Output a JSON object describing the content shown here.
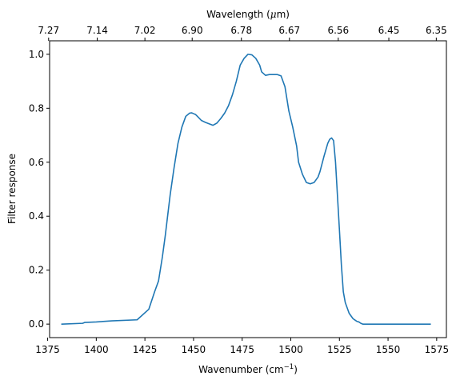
{
  "chart_data": {
    "type": "line",
    "title": "",
    "xlabel": "Wavenumber (cm",
    "xlabel_sup": "−1",
    "xlabel_close": ")",
    "ylabel": "Filter response",
    "top_xlabel_prefix": "Wavelength (",
    "top_xlabel_mu": "μ",
    "top_xlabel_suffix": "m)",
    "xlim": [
      1376,
      1580
    ],
    "ylim": [
      -0.05,
      1.05
    ],
    "grid": false,
    "line_color": "#1f77b4",
    "x_ticks": [
      {
        "value": 1375,
        "label": "1375"
      },
      {
        "value": 1400,
        "label": "1400"
      },
      {
        "value": 1425,
        "label": "1425"
      },
      {
        "value": 1450,
        "label": "1450"
      },
      {
        "value": 1475,
        "label": "1475"
      },
      {
        "value": 1500,
        "label": "1500"
      },
      {
        "value": 1525,
        "label": "1525"
      },
      {
        "value": 1550,
        "label": "1550"
      },
      {
        "value": 1575,
        "label": "1575"
      }
    ],
    "y_ticks": [
      {
        "value": 0.0,
        "label": "0.0"
      },
      {
        "value": 0.2,
        "label": "0.2"
      },
      {
        "value": 0.4,
        "label": "0.4"
      },
      {
        "value": 0.6,
        "label": "0.6"
      },
      {
        "value": 0.8,
        "label": "0.8"
      },
      {
        "value": 1.0,
        "label": "1.0"
      }
    ],
    "top_x_ticks": [
      {
        "value": 1375.5,
        "label": "7.27"
      },
      {
        "value": 1400.5,
        "label": "7.14"
      },
      {
        "value": 1425.0,
        "label": "7.02"
      },
      {
        "value": 1449.3,
        "label": "6.90"
      },
      {
        "value": 1474.6,
        "label": "6.78"
      },
      {
        "value": 1499.3,
        "label": "6.67"
      },
      {
        "value": 1524.4,
        "label": "6.56"
      },
      {
        "value": 1550.4,
        "label": "6.45"
      },
      {
        "value": 1574.8,
        "label": "6.35"
      }
    ],
    "series": [
      {
        "x": [
          1382,
          1393,
          1394,
          1400,
          1408,
          1421,
          1427,
          1430,
          1432,
          1434,
          1435.5,
          1436,
          1437,
          1438,
          1440,
          1442,
          1444,
          1446,
          1448,
          1449,
          1450,
          1451,
          1452,
          1454,
          1456,
          1460,
          1462,
          1464,
          1466,
          1468,
          1470,
          1472,
          1474,
          1476,
          1478,
          1480,
          1482,
          1484,
          1485,
          1487,
          1489,
          1491,
          1493,
          1495,
          1497,
          1499,
          1501,
          1503,
          1504,
          1506,
          1508,
          1510,
          1512,
          1514,
          1515,
          1517,
          1519,
          1520,
          1521,
          1522,
          1523,
          1525,
          1526,
          1527,
          1528,
          1529,
          1530,
          1531,
          1532,
          1533,
          1534,
          1535,
          1536,
          1537,
          1538,
          1540,
          1542,
          1544,
          1546,
          1548,
          1550,
          1560,
          1572
        ],
        "y": [
          0.0,
          0.003,
          0.006,
          0.008,
          0.012,
          0.016,
          0.055,
          0.12,
          0.16,
          0.25,
          0.33,
          0.36,
          0.42,
          0.48,
          0.58,
          0.67,
          0.73,
          0.77,
          0.782,
          0.783,
          0.78,
          0.777,
          0.77,
          0.755,
          0.748,
          0.737,
          0.745,
          0.762,
          0.782,
          0.81,
          0.85,
          0.9,
          0.96,
          0.985,
          1.0,
          0.998,
          0.985,
          0.96,
          0.935,
          0.922,
          0.925,
          0.925,
          0.925,
          0.92,
          0.88,
          0.79,
          0.73,
          0.66,
          0.6,
          0.555,
          0.525,
          0.52,
          0.525,
          0.545,
          0.565,
          0.62,
          0.67,
          0.685,
          0.69,
          0.68,
          0.6,
          0.35,
          0.22,
          0.12,
          0.08,
          0.06,
          0.04,
          0.03,
          0.02,
          0.015,
          0.01,
          0.008,
          0.003,
          0.0,
          0.0,
          0.0,
          0.0,
          0.0,
          0.0,
          0.0,
          0.0,
          0.0,
          0.0
        ]
      }
    ]
  }
}
